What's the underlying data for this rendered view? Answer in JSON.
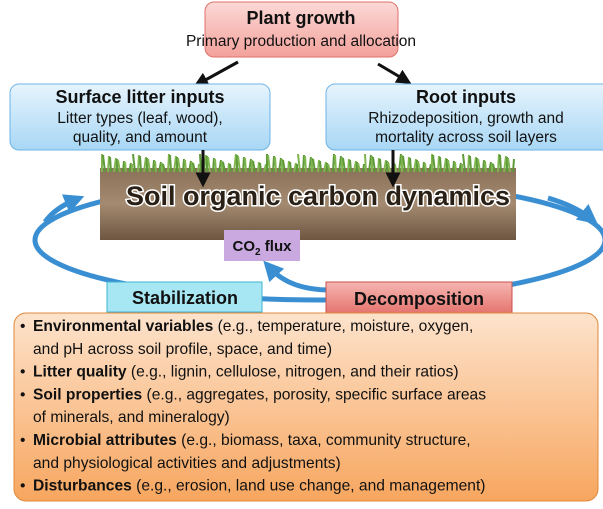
{
  "plant_growth": {
    "title": "Plant growth",
    "subtitle": "Primary production and allocation"
  },
  "surface_litter": {
    "title": "Surface litter inputs",
    "lines": [
      "Litter types (leaf, wood),",
      "quality, and amount"
    ]
  },
  "root_inputs": {
    "title": "Root inputs",
    "lines": [
      "Rhizodeposition, growth and",
      "mortality across soil layers"
    ]
  },
  "soil": {
    "title": "Soil organic carbon dynamics"
  },
  "co2_flux": {
    "text": "CO",
    "subscript": "2",
    "suffix": " flux"
  },
  "stabilization": {
    "label": "Stabilization"
  },
  "decomposition": {
    "label": "Decomposition"
  },
  "factors": [
    {
      "bullet": "•",
      "term": "Environmental variables",
      "lines": [
        " (e.g., temperature, moisture, oxygen,",
        "and pH across soil profile, space, and time)"
      ]
    },
    {
      "bullet": "•",
      "term": "Litter quality",
      "lines": [
        " (e.g., lignin, cellulose, nitrogen, and their ratios)"
      ]
    },
    {
      "bullet": "•",
      "term": "Soil properties",
      "lines": [
        " (e.g., aggregates, porosity, specific surface areas",
        "of minerals, and mineralogy)"
      ]
    },
    {
      "bullet": "•",
      "term": "Microbial attributes",
      "lines": [
        " (e.g., biomass, taxa, community structure,",
        "and physiological activities and adjustments)"
      ]
    },
    {
      "bullet": "•",
      "term": "Disturbances",
      "lines": [
        " (e.g., erosion, land use change, and management)"
      ]
    }
  ]
}
